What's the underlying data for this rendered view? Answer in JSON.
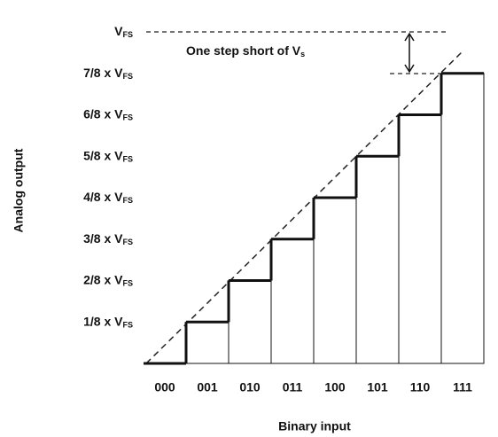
{
  "chart_data": {
    "type": "bar",
    "categories": [
      "000",
      "001",
      "010",
      "011",
      "100",
      "101",
      "110",
      "111"
    ],
    "values": [
      0,
      1,
      2,
      3,
      4,
      5,
      6,
      7
    ],
    "color": "#ffffff",
    "ylim": [
      0,
      8
    ],
    "yticks": [
      {
        "value": 1,
        "label": "1/8 x V",
        "subscript": "FS"
      },
      {
        "value": 2,
        "label": "2/8 x V",
        "subscript": "FS"
      },
      {
        "value": 3,
        "label": "3/8 x V",
        "subscript": "FS"
      },
      {
        "value": 4,
        "label": "4/8 x V",
        "subscript": "FS"
      },
      {
        "value": 5,
        "label": "5/8 x V",
        "subscript": "FS"
      },
      {
        "value": 6,
        "label": "6/8 x V",
        "subscript": "FS"
      },
      {
        "value": 7,
        "label": "7/8 x V",
        "subscript": "FS"
      },
      {
        "value": 8,
        "label": "V",
        "subscript": "FS"
      }
    ],
    "xlabel": "Binary input",
    "ylabel": "Analog output",
    "annotation": {
      "text": "One step short of V",
      "subscript": "s"
    }
  }
}
